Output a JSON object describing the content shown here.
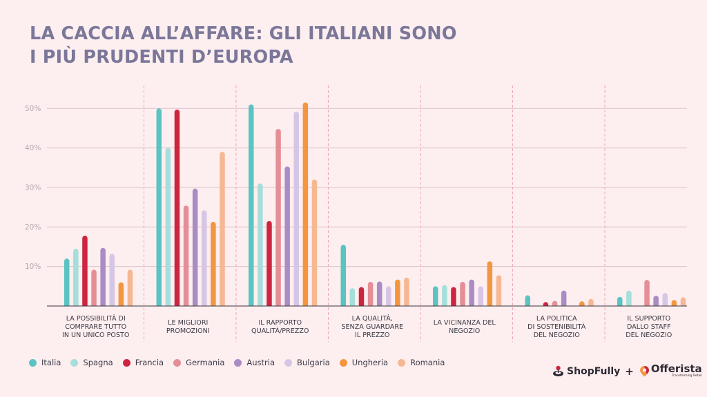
{
  "title": "LA CACCIA ALL’AFFARE: GLI ITALIANI SONO\nI PIÙ PRUDENTI D’EUROPA",
  "chart_data": {
    "type": "bar",
    "ylim": [
      0,
      55
    ],
    "ytick_labels": [
      "10%",
      "20%",
      "30%",
      "40%",
      "50%"
    ],
    "ytick_values": [
      10,
      20,
      30,
      40,
      50
    ],
    "grid": true,
    "legend_position": "bottom-left",
    "categories": [
      [
        "LA POSSIBILITÀ DI",
        "COMPRARE TUTTO",
        "IN UN UNICO POSTO"
      ],
      [
        "LE MIGLIORI",
        "PROMOZIONI"
      ],
      [
        "IL RAPPORTO",
        "QUALITÀ/PREZZO"
      ],
      [
        "LA QUALITÀ,",
        "SENZA GUARDARE",
        "IL PREZZO"
      ],
      [
        "LA VICINANZA DEL",
        "NEGOZIO"
      ],
      [
        "LA POLITICA",
        "DI SOSTENIBILITÀ",
        "DEL NEGOZIO"
      ],
      [
        "IL SUPPORTO",
        "DALLO STAFF",
        "DEL NEGOZIO"
      ]
    ],
    "series": [
      {
        "name": "Italia",
        "color": "#5bc4c2",
        "values": [
          12,
          50,
          51,
          15.5,
          5,
          2.7,
          2.3
        ]
      },
      {
        "name": "Spagna",
        "color": "#a6dedb",
        "values": [
          14.5,
          40,
          31,
          4.5,
          5.3,
          0,
          3.9
        ]
      },
      {
        "name": "Francia",
        "color": "#cc2540",
        "values": [
          17.8,
          49.7,
          21.5,
          4.8,
          4.8,
          1,
          0
        ]
      },
      {
        "name": "Germania",
        "color": "#e58e96",
        "values": [
          9.2,
          25.4,
          44.8,
          6.1,
          6.1,
          1.3,
          6.6
        ]
      },
      {
        "name": "Austria",
        "color": "#a98cc3",
        "values": [
          14.7,
          29.7,
          35.3,
          6.2,
          6.7,
          3.9,
          2.6
        ]
      },
      {
        "name": "Bulgaria",
        "color": "#d6c6e5",
        "values": [
          13.2,
          24.2,
          49.2,
          5,
          5,
          0,
          3.3
        ]
      },
      {
        "name": "Ungheria",
        "color": "#f4963f",
        "values": [
          6,
          21.3,
          51.5,
          6.7,
          11.3,
          1.2,
          1.5
        ]
      },
      {
        "name": "Romania",
        "color": "#f6b893",
        "values": [
          9.2,
          39,
          32,
          7.2,
          7.8,
          1.8,
          2.2
        ]
      }
    ]
  },
  "brand": {
    "shopfully": "ShopFully",
    "plus": "+",
    "offerista": "Offerista",
    "offerista_tagline": "Transforming Retail"
  }
}
